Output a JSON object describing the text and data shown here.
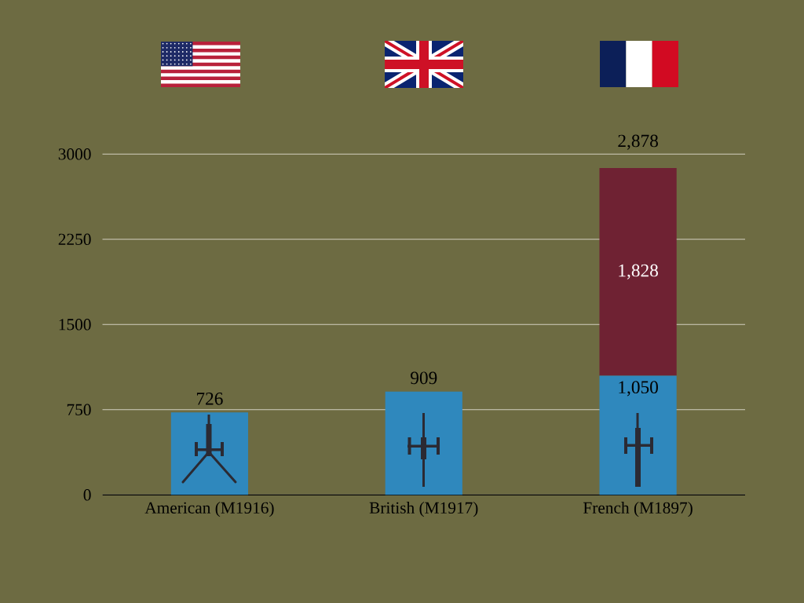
{
  "chart_data": {
    "type": "bar",
    "stacked": true,
    "categories": [
      "American (M1916)",
      "British (M1917)",
      "French (M1897)"
    ],
    "series": [
      {
        "color": "#2f88bd",
        "values": [
          726,
          909,
          1050
        ],
        "value_labels": [
          null,
          null,
          "1,050"
        ]
      },
      {
        "color": "#6f2233",
        "values": [
          null,
          null,
          1828
        ],
        "value_labels": [
          null,
          null,
          "1,828"
        ]
      }
    ],
    "totals": [
      "726",
      "909",
      "2,878"
    ],
    "ylim": [
      0,
      3000
    ],
    "yticks": [
      0,
      750,
      1500,
      2250,
      3000
    ],
    "grid": "y",
    "legend": false
  }
}
